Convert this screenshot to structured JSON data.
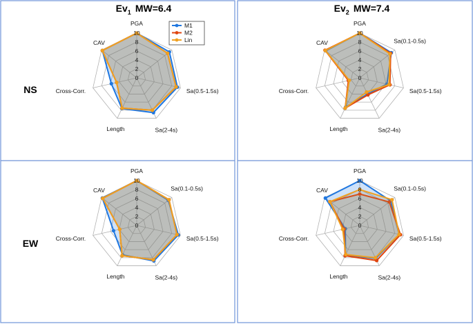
{
  "colors": {
    "M1": "#1f77e0",
    "M2": "#e0450f",
    "Lin": "#f0a020",
    "grid": "#b0b0b0",
    "fill": "#a08050",
    "border": "#6f94d8"
  },
  "chart_data": {
    "type": "radar",
    "titles": [
      {
        "ev": "Ev",
        "sub": "1",
        "mw": "MW=6.4"
      },
      {
        "ev": "Ev",
        "sub": "2",
        "mw": "MW=7.4"
      }
    ],
    "row_labels": [
      "NS",
      "EW"
    ],
    "axes": [
      "PGA",
      "Sa(0.1-0.5s)",
      "Sa(0.5-1.5s)",
      "Sa(2-4s)",
      "Length",
      "Cross-Corr.",
      "CAV"
    ],
    "ticks": [
      "0",
      "2",
      "4",
      "6",
      "8",
      "10"
    ],
    "rmax": 10,
    "legend": [
      "M1",
      "M2",
      "Lin"
    ],
    "panels": [
      {
        "name": "ev1-ns",
        "series": [
          {
            "name": "M1",
            "values": [
              10,
              9.3,
              9.3,
              8.6,
              7.6,
              5.8,
              9.8
            ]
          },
          {
            "name": "M2",
            "values": [
              10,
              8.8,
              9.0,
              8.0,
              7.5,
              4.6,
              9.8
            ]
          },
          {
            "name": "Lin",
            "values": [
              10,
              8.8,
              9.0,
              8.0,
              7.5,
              4.6,
              9.8
            ]
          }
        ]
      },
      {
        "name": "ev2-ns",
        "series": [
          {
            "name": "M1",
            "values": [
              10,
              9.0,
              6.2,
              4.0,
              7.2,
              2.5,
              9.7
            ]
          },
          {
            "name": "M2",
            "values": [
              10,
              8.8,
              6.9,
              4.2,
              7.5,
              2.6,
              9.9
            ]
          },
          {
            "name": "Lin",
            "values": [
              10,
              8.6,
              6.7,
              3.5,
              7.5,
              2.4,
              9.8
            ]
          }
        ]
      },
      {
        "name": "ev1-ew",
        "series": [
          {
            "name": "M1",
            "values": [
              10,
              9.0,
              9.5,
              8.8,
              7.3,
              5.3,
              9.8
            ]
          },
          {
            "name": "M2",
            "values": [
              10,
              9.2,
              9.2,
              8.5,
              7.5,
              3.9,
              9.7
            ]
          },
          {
            "name": "Lin",
            "values": [
              10,
              9.2,
              9.2,
              8.5,
              7.5,
              3.9,
              9.7
            ]
          }
        ]
      },
      {
        "name": "ev2-ew",
        "series": [
          {
            "name": "M1",
            "values": [
              10,
              8.8,
              9.0,
              8.2,
              7.3,
              3.3,
              9.8
            ]
          },
          {
            "name": "M2",
            "values": [
              7.0,
              8.4,
              9.3,
              8.7,
              7.5,
              3.6,
              8.5
            ]
          },
          {
            "name": "Lin",
            "values": [
              8.0,
              9.2,
              9.0,
              8.0,
              7.2,
              3.9,
              8.5
            ]
          }
        ]
      }
    ]
  }
}
